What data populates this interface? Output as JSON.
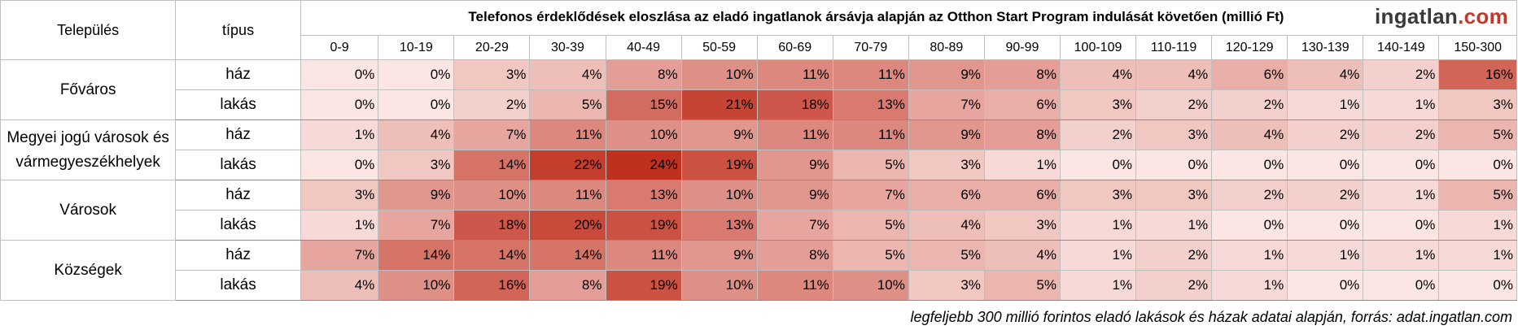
{
  "header": {
    "telepules": "Település",
    "tipus": "típus",
    "title": "Telefonos érdeklődések eloszlása az eladó ingatlanok ársávja alapján az Otthon Start Program indulását követően (millió Ft)",
    "logo_main": "ingatlan",
    "logo_tld": ".com"
  },
  "chart_data": {
    "type": "heatmap",
    "title": "Telefonos érdeklődések eloszlása az eladó ingatlanok ársávja alapján az Otthon Start Program indulását követően (millió Ft)",
    "x": [
      "0-9",
      "10-19",
      "20-29",
      "30-39",
      "40-49",
      "50-59",
      "60-69",
      "70-79",
      "80-89",
      "90-99",
      "100-109",
      "110-119",
      "120-129",
      "130-139",
      "140-149",
      "150-300"
    ],
    "groups": [
      {
        "name": "Főváros",
        "rows": [
          {
            "type": "ház",
            "values": [
              0,
              0,
              3,
              4,
              8,
              10,
              11,
              11,
              9,
              8,
              4,
              4,
              6,
              4,
              2,
              16
            ]
          },
          {
            "type": "lakás",
            "values": [
              0,
              0,
              2,
              5,
              15,
              21,
              18,
              13,
              7,
              6,
              3,
              2,
              2,
              1,
              1,
              3
            ]
          }
        ]
      },
      {
        "name": "Megyei jogú városok és vármegyeszékhelyek",
        "rows": [
          {
            "type": "ház",
            "values": [
              1,
              4,
              7,
              11,
              10,
              9,
              11,
              11,
              9,
              8,
              2,
              3,
              4,
              2,
              2,
              5
            ]
          },
          {
            "type": "lakás",
            "values": [
              0,
              3,
              14,
              22,
              24,
              19,
              9,
              5,
              3,
              1,
              0,
              0,
              0,
              0,
              0,
              0
            ]
          }
        ]
      },
      {
        "name": "Városok",
        "rows": [
          {
            "type": "ház",
            "values": [
              3,
              9,
              10,
              11,
              13,
              10,
              9,
              7,
              6,
              6,
              3,
              3,
              2,
              2,
              1,
              5
            ]
          },
          {
            "type": "lakás",
            "values": [
              1,
              7,
              18,
              20,
              19,
              13,
              7,
              5,
              4,
              3,
              1,
              1,
              0,
              0,
              0,
              1
            ]
          }
        ]
      },
      {
        "name": "Községek",
        "rows": [
          {
            "type": "ház",
            "values": [
              7,
              14,
              14,
              14,
              11,
              9,
              8,
              5,
              5,
              4,
              1,
              2,
              1,
              1,
              1,
              1
            ]
          },
          {
            "type": "lakás",
            "values": [
              4,
              10,
              16,
              8,
              19,
              10,
              11,
              10,
              3,
              5,
              1,
              2,
              1,
              0,
              0,
              0
            ]
          }
        ]
      }
    ],
    "unit": "%",
    "colors": {
      "low": "#fbe6e4",
      "high": "#c0301f"
    }
  },
  "footer": "legfeljebb 300 millió forintos eladó lakások és házak adatai alapján, forrás: adat.ingatlan.com"
}
